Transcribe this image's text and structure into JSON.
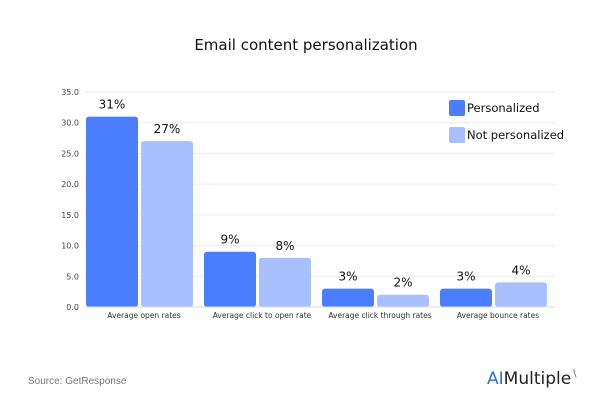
{
  "chart_data": {
    "type": "bar",
    "title": "Email content personalization",
    "categories": [
      "Average open rates",
      "Average click to open rate",
      "Average click through rates",
      "Average bounce rates"
    ],
    "series": [
      {
        "name": "Personalized",
        "values": [
          31,
          9,
          3,
          3
        ],
        "labels": [
          "31%",
          "9%",
          "3%",
          "3%"
        ],
        "color": "#4a7dff"
      },
      {
        "name": "Not personalized",
        "values": [
          27,
          8,
          2,
          4
        ],
        "labels": [
          "27%",
          "8%",
          "2%",
          "4%"
        ],
        "color": "#a9c0ff"
      }
    ],
    "ylim": [
      0,
      35
    ],
    "yticks": [
      "0.0",
      "5.0",
      "10.0",
      "15.0",
      "20.0",
      "25.0",
      "30.0",
      "35.0"
    ],
    "grid": true,
    "legend": "top-right"
  },
  "source": "Source: GetResponse",
  "logo": {
    "ai": "AI",
    "rest": "Multiple"
  }
}
